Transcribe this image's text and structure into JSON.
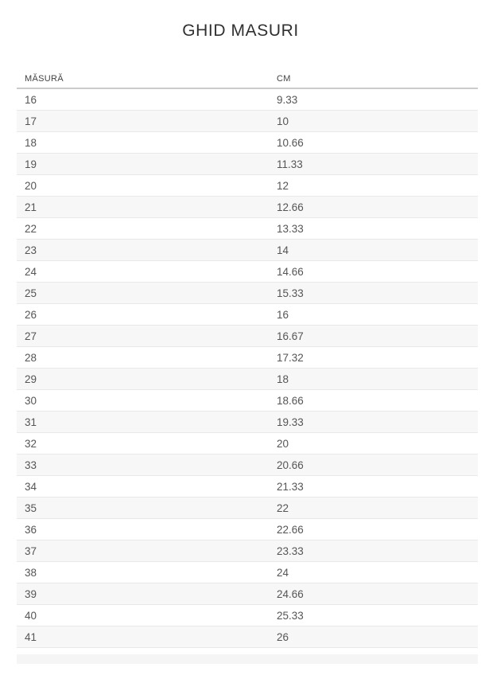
{
  "page": {
    "title": "GHID MASURI"
  },
  "table": {
    "columns": [
      {
        "key": "size",
        "label": "MĂSURĂ"
      },
      {
        "key": "cm",
        "label": "CM"
      }
    ],
    "rows": [
      {
        "size": "16",
        "cm": "9.33"
      },
      {
        "size": "17",
        "cm": "10"
      },
      {
        "size": "18",
        "cm": "10.66"
      },
      {
        "size": "19",
        "cm": "11.33"
      },
      {
        "size": "20",
        "cm": "12"
      },
      {
        "size": "21",
        "cm": "12.66"
      },
      {
        "size": "22",
        "cm": "13.33"
      },
      {
        "size": "23",
        "cm": "14"
      },
      {
        "size": "24",
        "cm": "14.66"
      },
      {
        "size": "25",
        "cm": "15.33"
      },
      {
        "size": "26",
        "cm": "16"
      },
      {
        "size": "27",
        "cm": "16.67"
      },
      {
        "size": "28",
        "cm": "17.32"
      },
      {
        "size": "29",
        "cm": "18"
      },
      {
        "size": "30",
        "cm": "18.66"
      },
      {
        "size": "31",
        "cm": "19.33"
      },
      {
        "size": "32",
        "cm": "20"
      },
      {
        "size": "33",
        "cm": "20.66"
      },
      {
        "size": "34",
        "cm": "21.33"
      },
      {
        "size": "35",
        "cm": "22"
      },
      {
        "size": "36",
        "cm": "22.66"
      },
      {
        "size": "37",
        "cm": "23.33"
      },
      {
        "size": "38",
        "cm": "24"
      },
      {
        "size": "39",
        "cm": "24.66"
      },
      {
        "size": "40",
        "cm": "25.33"
      },
      {
        "size": "41",
        "cm": "26"
      }
    ]
  },
  "colors": {
    "background": "#ffffff",
    "title_text": "#303030",
    "header_text": "#424242",
    "cell_text": "#555555",
    "row_stripe": "#f7f7f7",
    "row_border": "#e8e8e8",
    "header_border": "#cbcbcb",
    "partial_row_edge": "#f5f5f5"
  }
}
